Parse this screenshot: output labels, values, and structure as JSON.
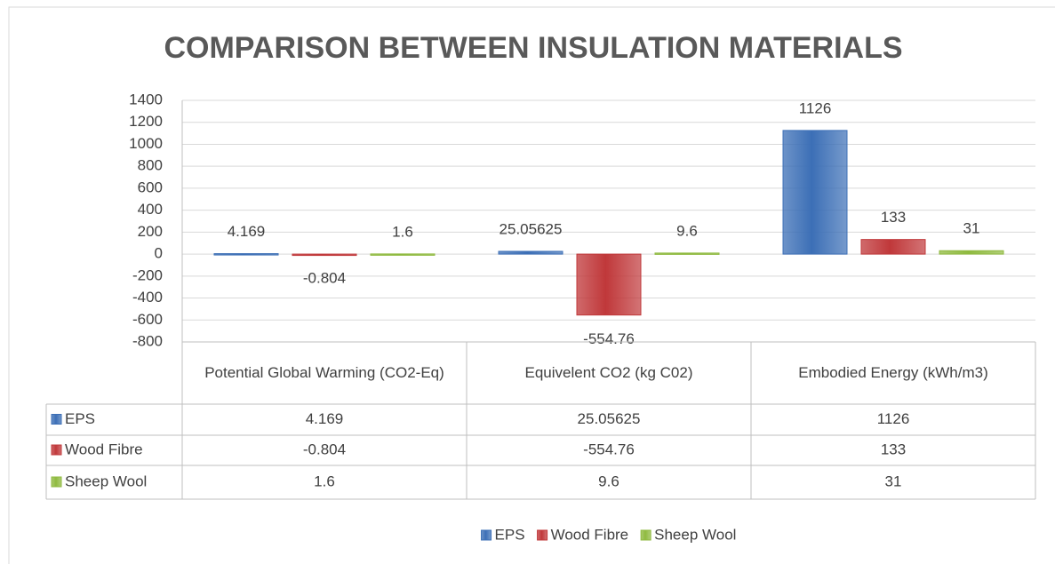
{
  "chart_data": {
    "type": "bar",
    "title": "COMPARISON BETWEEN INSULATION MATERIALS",
    "categories": [
      "Potential Global Warming (CO2-Eq)",
      "Equivelent CO2 (kg C02)",
      "Embodied Energy (kWh/m3)"
    ],
    "series": [
      {
        "name": "EPS",
        "color": "#3c6fb6",
        "values": [
          4.169,
          25.05625,
          1126
        ]
      },
      {
        "name": "Wood Fibre",
        "color": "#c0383a",
        "values": [
          -0.804,
          -554.76,
          133
        ]
      },
      {
        "name": "Sheep Wool",
        "color": "#8fba3f",
        "values": [
          1.6,
          9.6,
          31
        ]
      }
    ],
    "ylim": [
      -800,
      1400
    ],
    "yticks": [
      -800,
      -600,
      -400,
      -200,
      0,
      200,
      400,
      600,
      800,
      1000,
      1200,
      1400
    ],
    "grid": true,
    "legend": "bottom",
    "data_table": true
  }
}
